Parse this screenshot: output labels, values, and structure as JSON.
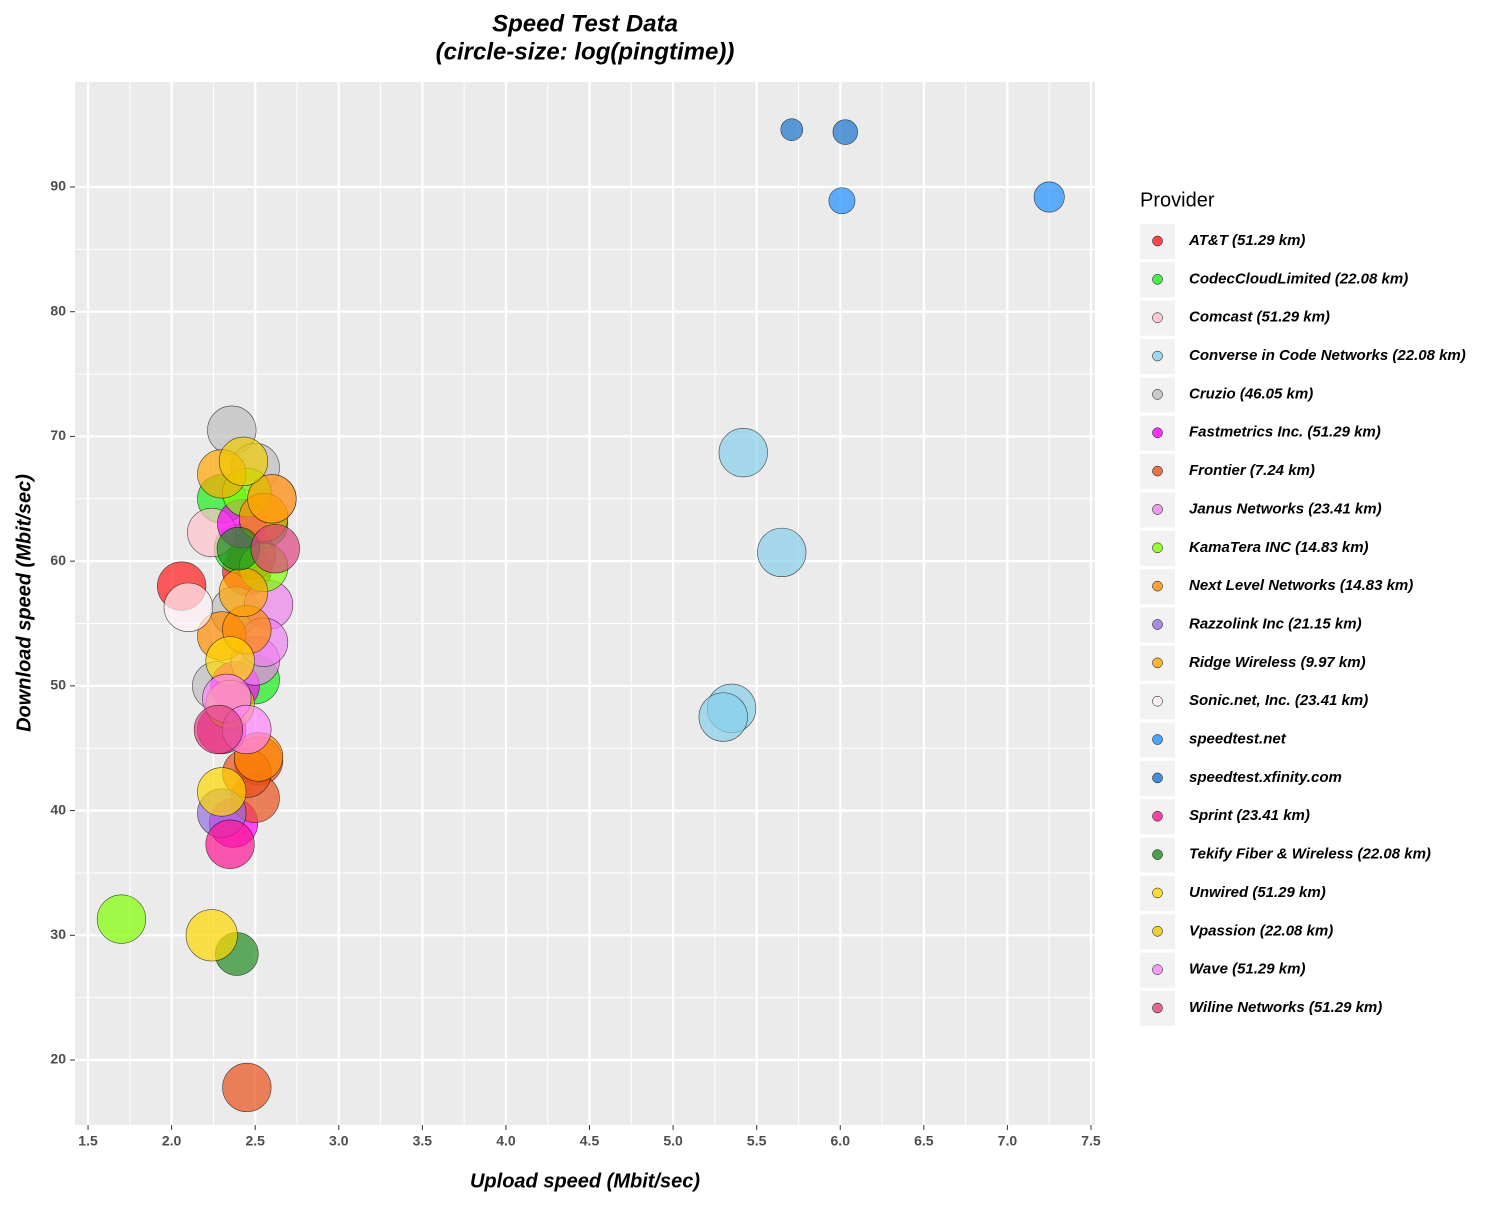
{
  "chart_data": {
    "type": "scatter",
    "title": "Speed Test Data",
    "subtitle": "(circle-size: log(pingtime))",
    "x_label": "Upload speed (Mbit/sec)",
    "y_label": "Download speed (Mbit/sec)",
    "legend_title": "Provider",
    "legend_position": "right",
    "grid": true,
    "xlim": [
      1.422,
      7.524
    ],
    "ylim": [
      14.79,
      98.42
    ],
    "xticks": [
      1.5,
      {
        "value": 2,
        "label": "2.0"
      },
      2.5,
      {
        "value": 3,
        "label": "3.0"
      },
      3.5,
      {
        "value": 4,
        "label": "4.0"
      },
      4.5,
      {
        "value": 5,
        "label": "5.0"
      },
      5.5,
      {
        "value": 6,
        "label": "6.0"
      },
      6.5,
      {
        "value": 7,
        "label": "7.0"
      },
      7.5
    ],
    "yticks": [
      20,
      30,
      40,
      50,
      60,
      70,
      80,
      90
    ],
    "series": [
      {
        "name": "AT&T (51.29 km)",
        "color": "#ff1a1a",
        "x": [
          2.06,
          2.45,
          2.48
        ],
        "values": [
          58,
          59.2,
          60.5
        ],
        "sizes": [
          2.9,
          2.9,
          2.9
        ]
      },
      {
        "name": "CodecCloudLimited (22.08 km)",
        "color": "#1aee1a",
        "x": [
          2.3,
          2.5,
          2.55,
          2.4
        ],
        "values": [
          65,
          50.5,
          63,
          61
        ],
        "sizes": [
          2.9,
          2.9,
          2.9,
          2.9
        ]
      },
      {
        "name": "Comcast (51.29 km)",
        "color": "#ffc0cb",
        "x": [
          2.24
        ],
        "values": [
          62.3
        ],
        "sizes": [
          2.9
        ]
      },
      {
        "name": "Converse in Code Networks (22.08 km)",
        "color": "#87ceeb",
        "x": [
          5.42,
          5.65,
          5.35,
          5.3
        ],
        "values": [
          68.7,
          60.7,
          48.2,
          47.5
        ],
        "sizes": [
          2.9,
          2.9,
          2.9,
          2.9
        ]
      },
      {
        "name": "Cruzio (46.05 km)",
        "color": "#bebebe",
        "x": [
          2.36,
          2.27,
          2.38,
          2.5
        ],
        "values": [
          70.5,
          50,
          56,
          67.5
        ],
        "sizes": [
          2.9,
          2.9,
          2.9,
          2.9
        ]
      },
      {
        "name": "Fastmetrics Inc. (51.29 km)",
        "color": "#ff00ff",
        "x": [
          2.42,
          2.37,
          2.38
        ],
        "values": [
          63,
          39,
          50
        ],
        "sizes": [
          2.9,
          2.9,
          2.9
        ]
      },
      {
        "name": "Frontier (7.24 km)",
        "color": "#e8501a",
        "x": [
          2.45,
          2.52,
          2.5,
          2.45
        ],
        "values": [
          17.8,
          44,
          41,
          43
        ],
        "sizes": [
          2.9,
          2.9,
          2.9,
          2.9
        ]
      },
      {
        "name": "Janus Networks (23.41 km)",
        "color": "#ee82ee",
        "x": [
          2.6,
          2.58,
          2.5,
          2.55
        ],
        "values": [
          65,
          56.5,
          52,
          53.5
        ],
        "sizes": [
          2.9,
          2.9,
          2.9,
          2.9
        ]
      },
      {
        "name": "KamaTera INC (14.83 km)",
        "color": "#7fff00",
        "x": [
          1.7,
          2.55,
          2.45
        ],
        "values": [
          31.3,
          59.5,
          65.5
        ],
        "sizes": [
          2.9,
          2.9,
          2.9
        ]
      },
      {
        "name": "Next Level Networks (14.83 km)",
        "color": "#ff8c00",
        "x": [
          2.3,
          2.45,
          2.52,
          2.55
        ],
        "values": [
          54,
          54.5,
          44.3,
          63.5
        ],
        "sizes": [
          2.9,
          2.9,
          2.9,
          2.9
        ]
      },
      {
        "name": "Razzolink Inc (21.15 km)",
        "color": "#9370db",
        "x": [
          2.3
        ],
        "values": [
          39.8
        ],
        "sizes": [
          2.9
        ]
      },
      {
        "name": "Ridge Wireless (9.97 km)",
        "color": "#ffa500",
        "x": [
          2.3,
          2.43,
          2.6
        ],
        "values": [
          67,
          57.5,
          65
        ],
        "sizes": [
          2.9,
          2.9,
          2.9
        ]
      },
      {
        "name": "Sonic.net, Inc. (23.41 km)",
        "color": "#fff0f5",
        "x": [
          2.1
        ],
        "values": [
          56.3
        ],
        "sizes": [
          2.9
        ]
      },
      {
        "name": "speedtest.net",
        "color": "#1e90ff",
        "x": [
          7.25,
          6.01
        ],
        "values": [
          89.2,
          88.9
        ],
        "sizes": [
          1.6,
          1.3
        ]
      },
      {
        "name": "speedtest.xfinity.com",
        "color": "#1874cd",
        "x": [
          5.71,
          6.03
        ],
        "values": [
          94.6,
          94.4
        ],
        "sizes": [
          1.0,
          1.2
        ]
      },
      {
        "name": "Sprint (23.41 km)",
        "color": "#ff1493",
        "x": [
          2.35,
          2.3
        ],
        "values": [
          37.3,
          46.5
        ],
        "sizes": [
          2.9,
          2.9
        ]
      },
      {
        "name": "Tekify Fiber & Wireless (22.08 km)",
        "color": "#228b22",
        "x": [
          2.39,
          2.4
        ],
        "values": [
          28.5,
          61
        ],
        "sizes": [
          2.5,
          2.5
        ]
      },
      {
        "name": "Unwired (51.29 km)",
        "color": "#ffd700",
        "x": [
          2.24,
          2.3,
          2.35
        ],
        "values": [
          30,
          41.5,
          52
        ],
        "sizes": [
          3.1,
          2.9,
          2.9
        ]
      },
      {
        "name": "Vpassion (22.08 km)",
        "color": "#eec900",
        "x": [
          2.43,
          2.35
        ],
        "values": [
          68,
          48.5
        ],
        "sizes": [
          2.9,
          2.9
        ]
      },
      {
        "name": "Wave (51.29 km)",
        "color": "#ff83fa",
        "x": [
          2.33,
          2.45
        ],
        "values": [
          49,
          46.5
        ],
        "sizes": [
          2.9,
          2.9
        ]
      },
      {
        "name": "Wiline Networks (51.29 km)",
        "color": "#e0427f",
        "x": [
          2.28,
          2.62
        ],
        "values": [
          46.5,
          61
        ],
        "sizes": [
          2.9,
          2.9
        ]
      }
    ]
  }
}
